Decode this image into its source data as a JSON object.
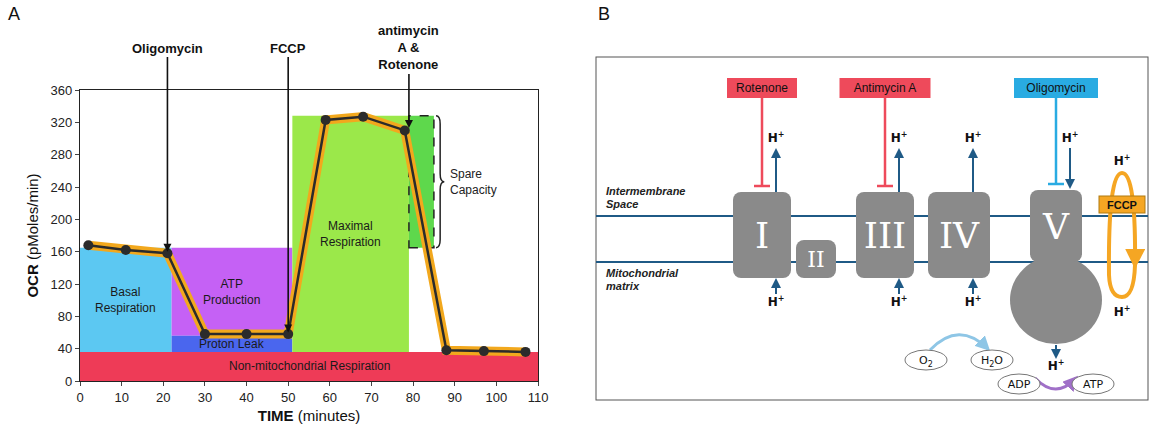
{
  "panel_labels": [
    "A",
    "B"
  ],
  "chart_data": {
    "type": "line",
    "x_label": "TIME (minutes)",
    "y_label": "OCR (pMoles/min)",
    "x": [
      2,
      11,
      21,
      30,
      40,
      50,
      59,
      68,
      78,
      88,
      97,
      107
    ],
    "values": [
      168,
      162,
      158,
      58,
      58,
      58,
      323,
      327,
      310,
      38,
      37,
      36
    ],
    "color": "#2b2b2b",
    "marker": "circle",
    "grid": false,
    "xlim": [
      0,
      110
    ],
    "xticks": [
      0,
      10,
      20,
      30,
      40,
      50,
      60,
      70,
      80,
      90,
      100,
      110
    ],
    "ylim": [
      0,
      360
    ],
    "yticks": [
      0,
      40,
      80,
      120,
      160,
      200,
      240,
      280,
      320,
      360
    ],
    "regions": [
      {
        "label": "Non-mitochondrial Respiration",
        "x": [
          0,
          110
        ],
        "y": [
          0,
          36
        ],
        "color": "#ee3b57"
      },
      {
        "label": "Basal Respiration",
        "x": [
          0,
          22
        ],
        "y": [
          36,
          165
        ],
        "color": "#5cc8f2"
      },
      {
        "label": "ATP Production",
        "x": [
          22,
          51
        ],
        "y": [
          56,
          165
        ],
        "color": "#c561f5"
      },
      {
        "label": "Proton Leak",
        "x": [
          22,
          51
        ],
        "y": [
          36,
          56
        ],
        "color": "#4a66ee"
      },
      {
        "label": "Maximal Respiration",
        "x": [
          51,
          79
        ],
        "y": [
          36,
          328
        ],
        "color": "#9be84a"
      },
      {
        "label": "Spare Capacity",
        "x": [
          79,
          85
        ],
        "y": [
          165,
          328
        ],
        "color": "#5ed84c",
        "line_style": "dashed"
      }
    ],
    "injections": [
      {
        "label": "Oligomycin",
        "x": 21,
        "y": 160
      },
      {
        "label": "FCCP",
        "x": 50,
        "y": 60
      },
      {
        "label": "antimycin A & Rotenone",
        "x": 79,
        "y": 313
      }
    ]
  },
  "diagram": {
    "compartments": [
      "Intermembrane Space",
      "Mitochondrial matrix"
    ],
    "complexes": [
      "I",
      "II",
      "III",
      "IV",
      "V"
    ],
    "inhibitors": [
      {
        "label": "Rotenone",
        "target": "I",
        "color": "#ee4a5b"
      },
      {
        "label": "Antimycin A",
        "target": "III",
        "color": "#ee4a5b"
      },
      {
        "label": "Oligomycin",
        "target": "V",
        "color": "#29abe2"
      }
    ],
    "uncoupler": {
      "label": "FCCP",
      "color": "#f5a623"
    },
    "proton": "H+",
    "pumps": [
      "I",
      "III",
      "IV",
      "V"
    ],
    "reactions": [
      {
        "at": "IV",
        "from": "O2",
        "to": "H2O",
        "color": "#8ec6e6"
      },
      {
        "at": "V",
        "from": "ADP",
        "to": "ATP",
        "color": "#a070c8"
      }
    ]
  }
}
